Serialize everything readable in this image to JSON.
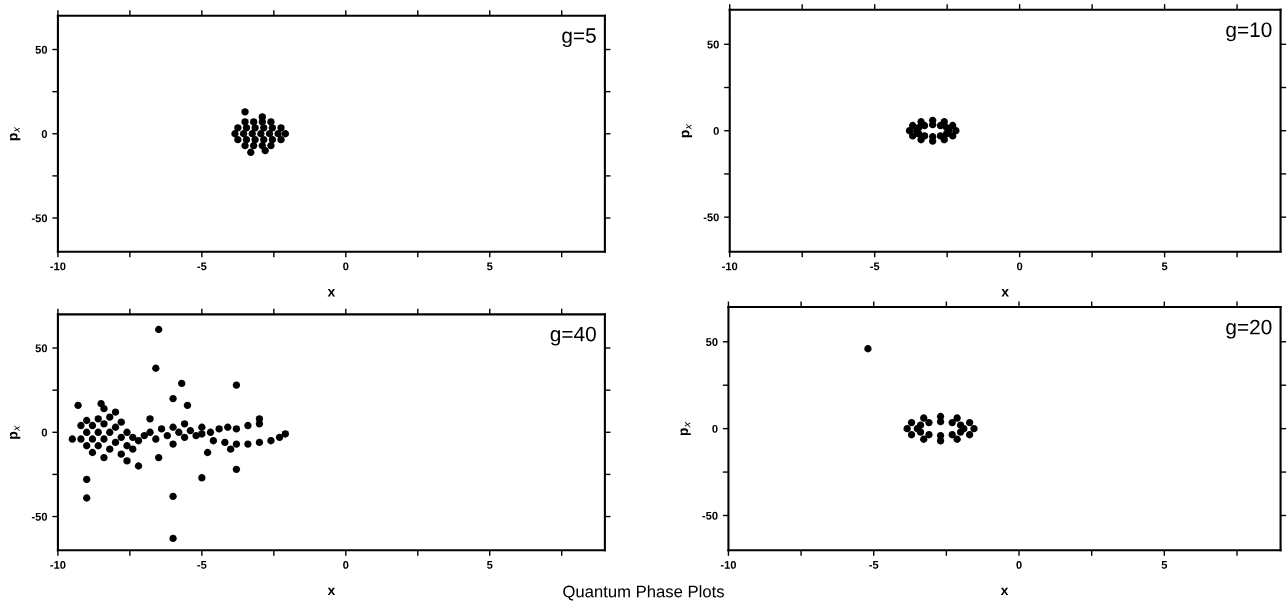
{
  "chart_data": [
    {
      "type": "scatter",
      "title": "g=5",
      "xlabel": "x",
      "ylabel": "p$_{x}$",
      "marker": "circle",
      "xlim": [
        -10,
        9
      ],
      "ylim": [
        -70,
        70
      ],
      "xticks": [
        -10,
        -5,
        0,
        5
      ],
      "yticks": [
        -50,
        0,
        50
      ],
      "series": [
        {
          "color": "#000000",
          "x": [
            -3.85,
            -3.55,
            -3.25,
            -2.95,
            -2.65,
            -2.35,
            -2.1,
            -3.75,
            -3.45,
            -3.15,
            -2.85,
            -2.55,
            -2.25,
            -3.75,
            -3.45,
            -3.15,
            -2.85,
            -2.55,
            -2.25,
            -3.5,
            -3.2,
            -2.9,
            -2.6,
            -3.5,
            -3.2,
            -2.9,
            -2.6,
            -3.5,
            -3.3,
            -2.9,
            -2.8
          ],
          "values": [
            0,
            0,
            0,
            0,
            0,
            0,
            0,
            3.5,
            3.5,
            3.5,
            3.5,
            3.5,
            3.5,
            -3.5,
            -3.5,
            -3.5,
            -3.5,
            -3.5,
            -3.5,
            7,
            7,
            7,
            7,
            -7,
            -7,
            -7,
            -7,
            13,
            -11,
            10,
            -10
          ]
        }
      ]
    },
    {
      "type": "scatter",
      "title": "g=10",
      "xlabel": "x",
      "ylabel": "p$_{x}$",
      "marker": "circle",
      "xlim": [
        -10,
        9
      ],
      "ylim": [
        -70,
        70
      ],
      "xticks": [
        -10,
        -5,
        0,
        5
      ],
      "yticks": [
        -50,
        0,
        50
      ],
      "series": [
        {
          "color": "#000000",
          "x": [
            -2.45,
            -2.52,
            -2.73,
            -3.0,
            -3.28,
            -3.48,
            -3.55,
            -3.48,
            -3.28,
            -3.0,
            -2.73,
            -2.52,
            -2.2,
            -2.31,
            -2.6,
            -3.0,
            -3.4,
            -3.69,
            -3.8,
            -3.69,
            -3.4,
            -3.0,
            -2.6,
            -2.31
          ],
          "values": [
            0,
            1.8,
            3.0,
            3.5,
            3.0,
            1.8,
            0,
            -1.8,
            -3.0,
            -3.5,
            -3.0,
            -1.8,
            0,
            3,
            5.2,
            6,
            5.2,
            3,
            0,
            -3,
            -5.2,
            -6,
            -5.2,
            -3
          ]
        }
      ]
    },
    {
      "type": "scatter",
      "title": "g=40",
      "xlabel": "x",
      "ylabel": "p$_{x}$",
      "marker": "circle",
      "xlim": [
        -10,
        9
      ],
      "ylim": [
        -70,
        70
      ],
      "xticks": [
        -10,
        -5,
        0,
        5
      ],
      "yticks": [
        -50,
        0,
        50
      ],
      "annotations": [
        "Quantum Phase Plots"
      ],
      "series": [
        {
          "color": "#000000",
          "x": [
            -9.2,
            -9.2,
            -9.0,
            -9.0,
            -9.0,
            -8.8,
            -8.8,
            -8.8,
            -8.6,
            -8.6,
            -8.6,
            -8.4,
            -8.4,
            -8.4,
            -8.4,
            -8.2,
            -8.2,
            -8.2,
            -8.0,
            -8.0,
            -8.0,
            -7.8,
            -7.8,
            -7.8,
            -7.6,
            -7.6,
            -7.6,
            -7.4,
            -7.4,
            -7.2,
            -7.0,
            -6.8,
            -6.8,
            -6.6,
            -6.4,
            -6.2,
            -6.0,
            -6.0,
            -5.8,
            -5.6,
            -5.6,
            -5.4,
            -5.2,
            -5.0,
            -5.0,
            -4.7,
            -4.4,
            -4.1,
            -3.8,
            -3.4,
            -3.0,
            -4.6,
            -4.2,
            -3.8,
            -3.4,
            -3.0,
            -2.6,
            -2.3,
            -2.1,
            -9.5,
            -9.3,
            -8.5,
            -6.5,
            -6.6,
            -6.0,
            -9.0,
            -9.0,
            -6.0,
            -5.7,
            -3.8,
            -5.0,
            -3.8,
            -6.0,
            -5.5,
            -7.2,
            -6.5,
            -4.8,
            -4.0,
            -3.0
          ],
          "values": [
            -4,
            4,
            -8,
            0,
            7,
            -12,
            -4,
            4,
            -8,
            0,
            8,
            -15,
            -4,
            5,
            14,
            -10,
            0,
            9,
            -6,
            3,
            12,
            -13,
            -3,
            6,
            -17,
            -8,
            0,
            -10,
            -3,
            -5,
            -2,
            0,
            8,
            -4,
            2,
            -2,
            3,
            -7,
            0,
            5,
            -3,
            1,
            -2,
            3,
            -1,
            0,
            2,
            3,
            2,
            4,
            5,
            -5,
            -6,
            -7,
            -7,
            -6,
            -5,
            -3,
            -1,
            -4,
            16,
            17,
            61,
            38,
            -63,
            -28,
            -39,
            -38,
            29,
            28,
            -27,
            -22,
            20,
            16,
            -20,
            -15,
            -12,
            -10,
            8
          ]
        }
      ]
    },
    {
      "type": "scatter",
      "title": "g=20",
      "xlabel": "x",
      "ylabel": "p$_{x}$",
      "marker": "circle",
      "xlim": [
        -10,
        9
      ],
      "ylim": [
        -70,
        70
      ],
      "xticks": [
        -10,
        -5,
        0,
        5
      ],
      "yticks": [
        -50,
        0,
        50
      ],
      "series": [
        {
          "color": "#000000",
          "x": [
            -1.9,
            -2.01,
            -2.3,
            -2.7,
            -3.1,
            -3.39,
            -3.5,
            -3.39,
            -3.1,
            -2.7,
            -2.3,
            -2.01,
            -1.55,
            -1.7,
            -2.13,
            -2.7,
            -3.28,
            -3.7,
            -3.85,
            -3.7,
            -3.28,
            -2.7,
            -2.13,
            -1.7,
            -5.2
          ],
          "values": [
            0,
            2,
            3.5,
            4,
            3.5,
            2,
            0,
            -2,
            -3.5,
            -4,
            -3.5,
            -2,
            0,
            3.5,
            6.1,
            7,
            6.1,
            3.5,
            0,
            -3.5,
            -6.1,
            -7,
            -6.1,
            -3.5,
            46
          ]
        }
      ]
    }
  ]
}
